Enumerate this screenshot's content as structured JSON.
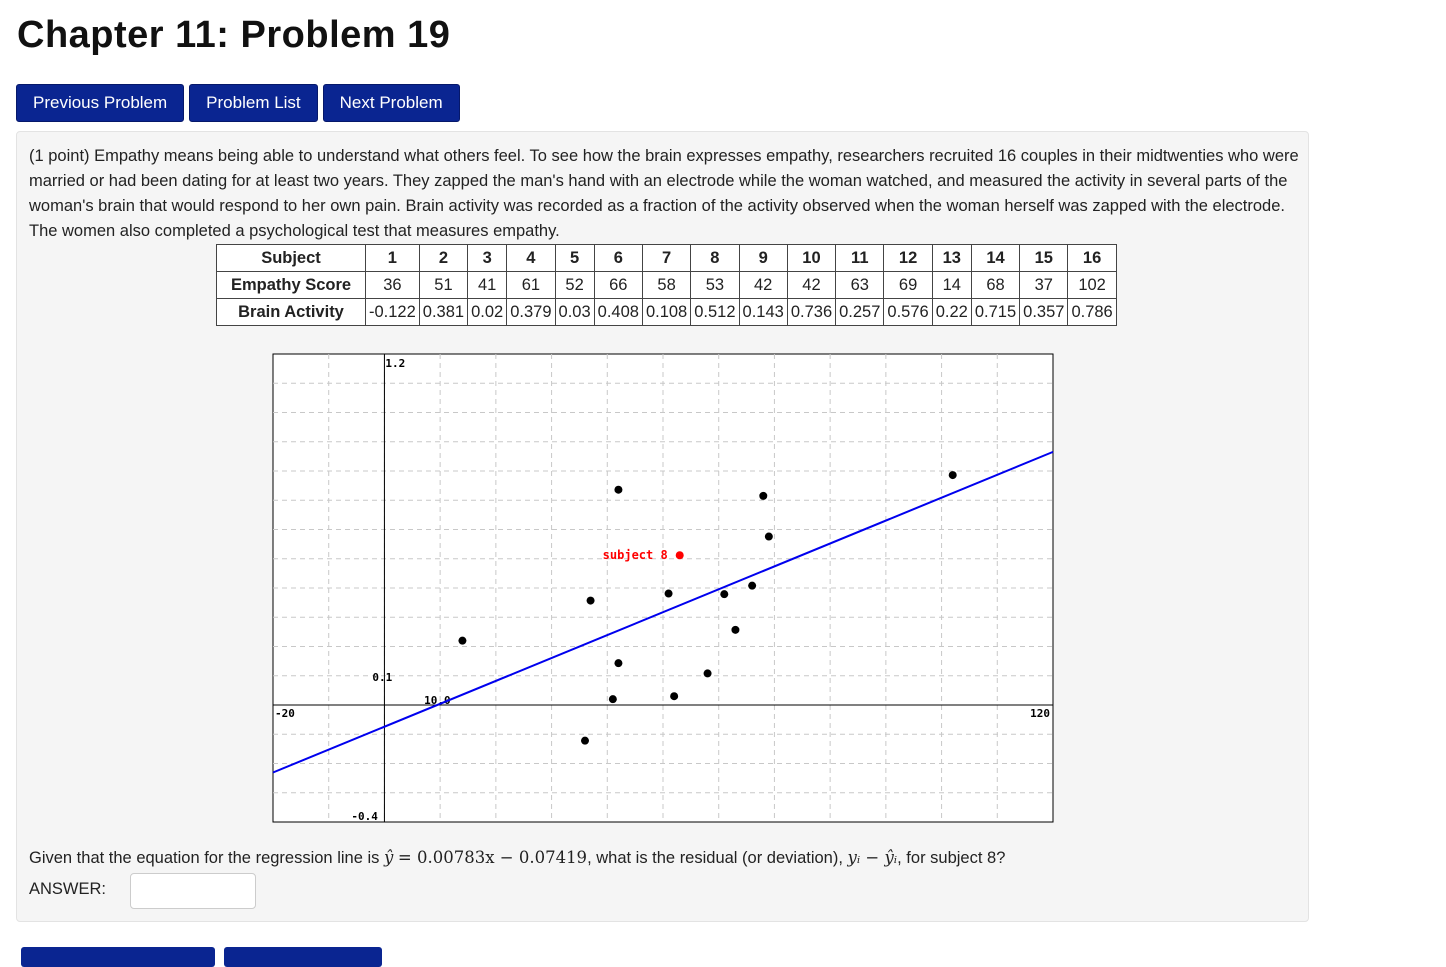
{
  "page": {
    "title": "Chapter 11: Problem 19"
  },
  "nav": {
    "previous": "Previous Problem",
    "list": "Problem List",
    "next": "Next Problem"
  },
  "problem": {
    "text": "(1 point) Empathy means being able to understand what others feel. To see how the brain expresses empathy, researchers recruited 16 couples in their midtwenties who were married or had been dating for at least two years. They zapped the man's hand with an electrode while the woman watched, and measured the activity in several parts of the woman's brain that would respond to her own pain. Brain activity was recorded as a fraction of the activity observed when the woman herself was zapped with the electrode. The women also completed a psychological test that measures empathy."
  },
  "table": {
    "row_labels": [
      "Subject",
      "Empathy Score",
      "Brain Activity"
    ],
    "subjects": [
      "1",
      "2",
      "3",
      "4",
      "5",
      "6",
      "7",
      "8",
      "9",
      "10",
      "11",
      "12",
      "13",
      "14",
      "15",
      "16"
    ],
    "empathy": [
      "36",
      "51",
      "41",
      "61",
      "52",
      "66",
      "58",
      "53",
      "42",
      "42",
      "63",
      "69",
      "14",
      "68",
      "37",
      "102"
    ],
    "brain": [
      "-0.122",
      "0.381",
      "0.02",
      "0.379",
      "0.03",
      "0.408",
      "0.108",
      "0.512",
      "0.143",
      "0.736",
      "0.257",
      "0.576",
      "0.22",
      "0.715",
      "0.357",
      "0.786"
    ]
  },
  "chart_data": {
    "type": "scatter",
    "x": [
      36,
      51,
      41,
      61,
      52,
      66,
      58,
      53,
      42,
      42,
      63,
      69,
      14,
      68,
      37,
      102
    ],
    "y": [
      -0.122,
      0.381,
      0.02,
      0.379,
      0.03,
      0.408,
      0.108,
      0.512,
      0.143,
      0.736,
      0.257,
      0.576,
      0.22,
      0.715,
      0.357,
      0.786
    ],
    "highlight_index": 7,
    "highlight_label": "subject 8",
    "highlight_color": "#ff0000",
    "point_color": "#000000",
    "line": {
      "slope": 0.00783,
      "intercept": -0.07419,
      "color": "#0000ee"
    },
    "xlim": [
      -20,
      120
    ],
    "ylim": [
      -0.4,
      1.2
    ],
    "x_tick_labels": [
      "-20",
      "10.0",
      "120"
    ],
    "y_tick_labels": [
      "1.2",
      "0.1",
      "-0.4"
    ],
    "grid": true
  },
  "question": {
    "prefix": "Given that the equation for the regression line is",
    "eq_lhs": "ŷ",
    "eq_rhs": "= 0.00783x − 0.07419",
    "mid": ", what is the residual (or deviation),",
    "resid": "yᵢ − ŷᵢ",
    "suffix": ", for subject 8?"
  },
  "answer": {
    "label": "ANSWER:",
    "value": ""
  }
}
